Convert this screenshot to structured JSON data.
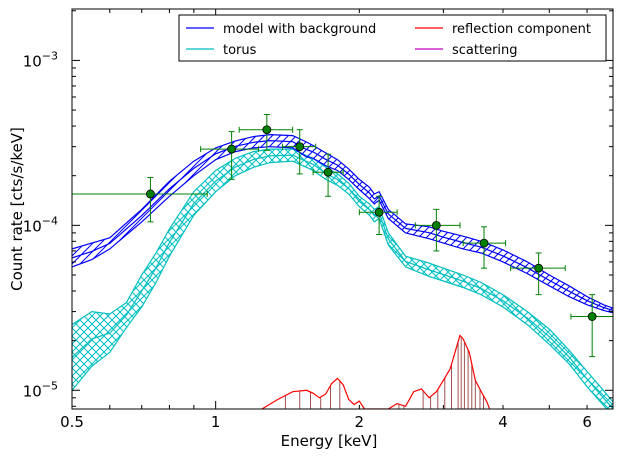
{
  "chart_data": {
    "type": "line",
    "title": "",
    "xlabel": "Energy [keV]",
    "ylabel": "Count rate [cts/s/keV]",
    "x_scale": "log",
    "y_scale": "log",
    "xlim": [
      0.5,
      6.8
    ],
    "ylim": [
      7.7e-06,
      0.00205
    ],
    "grid": false,
    "legend_position": "top-right",
    "x_tick_labels": [
      {
        "value": 0.5,
        "label": "0.5"
      },
      {
        "value": 1,
        "label": "1"
      },
      {
        "value": 2,
        "label": "2"
      },
      {
        "value": 4,
        "label": "4"
      },
      {
        "value": 6,
        "label": "6"
      }
    ],
    "y_tick_labels": [
      {
        "value": 1e-05,
        "base": "10",
        "exp": "−5"
      },
      {
        "value": 0.0001,
        "base": "10",
        "exp": "−4"
      },
      {
        "value": 0.001,
        "base": "10",
        "exp": "−3"
      }
    ],
    "legend": [
      {
        "label": "model with background",
        "color": "#0000ff"
      },
      {
        "label": "torus",
        "color": "#00bfbf"
      },
      {
        "label": "reflection component",
        "color": "#ff0000"
      },
      {
        "label": "scattering",
        "color": "#bf00bf"
      }
    ],
    "series": [
      {
        "name": "model with background",
        "color": "#0000ff",
        "hatch": "////",
        "x": [
          0.5,
          0.55,
          0.6,
          0.7,
          0.8,
          0.9,
          1.0,
          1.1,
          1.2,
          1.3,
          1.45,
          1.55,
          1.6,
          1.7,
          1.8,
          1.9,
          2.0,
          2.1,
          2.15,
          2.2,
          2.3,
          2.5,
          2.8,
          3.0,
          3.3,
          3.6,
          4.0,
          4.5,
          5.0,
          5.5,
          6.0,
          6.5,
          6.8
        ],
        "lower": [
          5.6e-05,
          6.2e-05,
          7.2e-05,
          0.000105,
          0.00015,
          0.0002,
          0.00025,
          0.00028,
          0.000295,
          0.0003,
          0.000295,
          0.00026,
          0.000255,
          0.00023,
          0.000215,
          0.00019,
          0.000165,
          0.000145,
          0.000135,
          0.000142,
          0.00011,
          9e-05,
          8.3e-05,
          7.8e-05,
          7.2e-05,
          6.8e-05,
          6e-05,
          5.1e-05,
          4.3e-05,
          3.7e-05,
          3.3e-05,
          3.05e-05,
          2.95e-05
        ],
        "upper": [
          7.2e-05,
          7.8e-05,
          8.4e-05,
          0.000125,
          0.000185,
          0.000245,
          0.000295,
          0.000325,
          0.000345,
          0.000355,
          0.00035,
          0.00032,
          0.000305,
          0.000275,
          0.00025,
          0.00022,
          0.00019,
          0.00017,
          0.000155,
          0.00016,
          0.000125,
          0.000102,
          9.8e-05,
          9.2e-05,
          8.6e-05,
          8e-05,
          7.1e-05,
          6e-05,
          5e-05,
          4.3e-05,
          3.7e-05,
          3.3e-05,
          3.15e-05
        ]
      },
      {
        "name": "torus",
        "color": "#00bfbf",
        "hatch": "xxx",
        "x": [
          0.5,
          0.55,
          0.6,
          0.65,
          0.7,
          0.75,
          0.8,
          0.9,
          1.0,
          1.1,
          1.2,
          1.3,
          1.45,
          1.55,
          1.6,
          1.7,
          1.8,
          1.9,
          2.0,
          2.1,
          2.15,
          2.2,
          2.3,
          2.5,
          2.8,
          3.0,
          3.3,
          3.6,
          4.0,
          4.5,
          5.0,
          5.5,
          6.0,
          6.4,
          6.8
        ],
        "lower": [
          1e-05,
          1.4e-05,
          1.7e-05,
          2.4e-05,
          3.2e-05,
          4.5e-05,
          6.5e-05,
          0.000115,
          0.00016,
          0.0002,
          0.000225,
          0.00024,
          0.000245,
          0.000225,
          0.000215,
          0.00019,
          0.000175,
          0.000155,
          0.00013,
          0.000115,
          0.000105,
          0.00011,
          7.6e-05,
          5.6e-05,
          4.9e-05,
          4.6e-05,
          4.2e-05,
          3.8e-05,
          3.2e-05,
          2.5e-05,
          1.9e-05,
          1.45e-05,
          1.05e-05,
          8.5e-06,
          7e-06
        ],
        "upper": [
          2.5e-05,
          3e-05,
          2.9e-05,
          3.4e-05,
          5e-05,
          6.8e-05,
          9.5e-05,
          0.00016,
          0.000215,
          0.000255,
          0.00028,
          0.00029,
          0.00029,
          0.000265,
          0.000255,
          0.000225,
          0.000205,
          0.00018,
          0.00015,
          0.000135,
          0.000125,
          0.00013,
          9e-05,
          6.5e-05,
          5.9e-05,
          5.5e-05,
          5e-05,
          4.5e-05,
          3.8e-05,
          3e-05,
          2.35e-05,
          1.75e-05,
          1.3e-05,
          1.05e-05,
          8.5e-06
        ]
      },
      {
        "name": "reflection component",
        "color": "#ff0000",
        "x": [
          1.25,
          1.35,
          1.45,
          1.55,
          1.6,
          1.65,
          1.7,
          1.75,
          1.8,
          1.85,
          1.9,
          1.95,
          2.0,
          2.05,
          2.3,
          2.4,
          2.5,
          2.6,
          2.7,
          2.8,
          2.9,
          3.0,
          3.1,
          3.2,
          3.25,
          3.3,
          3.4,
          3.5,
          3.6,
          3.7,
          3.75
        ],
        "y": [
          7.7e-06,
          8.8e-06,
          9.8e-06,
          1e-05,
          9.6e-06,
          9e-06,
          9.5e-06,
          1.1e-05,
          1.18e-05,
          1.08e-05,
          8.8e-06,
          8.2e-06,
          8.6e-06,
          7.7e-06,
          7.7e-06,
          8.3e-06,
          8e-06,
          9.8e-06,
          1.02e-05,
          9e-06,
          9.8e-06,
          1.15e-05,
          1.35e-05,
          1.85e-05,
          2.15e-05,
          2.05e-05,
          1.7e-05,
          1.15e-05,
          9.8e-06,
          8.5e-06,
          7.7e-06
        ],
        "stems_x": [
          1.4,
          1.5,
          1.58,
          1.66,
          1.74,
          1.82,
          2.42,
          2.48,
          2.72,
          2.82,
          2.92,
          3.02,
          3.12,
          3.22,
          3.27,
          3.32,
          3.38,
          3.44,
          3.5,
          3.58,
          3.64
        ]
      }
    ],
    "data_points": {
      "name": "data",
      "color": "#008000",
      "x": [
        0.73,
        1.08,
        1.28,
        1.5,
        1.72,
        2.2,
        2.9,
        3.65,
        4.75,
        6.15
      ],
      "xerr_low": [
        0.5,
        0.93,
        1.12,
        1.38,
        1.6,
        2.0,
        2.62,
        3.3,
        4.15,
        5.55
      ],
      "xerr_high": [
        0.96,
        1.23,
        1.45,
        1.62,
        1.85,
        2.4,
        3.25,
        4.05,
        5.4,
        6.8
      ],
      "y": [
        0.000155,
        0.00029,
        0.00038,
        0.0003,
        0.00021,
        0.00012,
        0.0001,
        7.8e-05,
        5.5e-05,
        2.8e-05
      ],
      "yerr_low": [
        0.000105,
        0.00019,
        0.000285,
        0.000205,
        0.00015,
        8.8e-05,
        7e-05,
        5.5e-05,
        3.8e-05,
        1.6e-05
      ],
      "yerr_high": [
        0.000195,
        0.00037,
        0.00047,
        0.00038,
        0.00027,
        0.00015,
        0.000125,
        9.8e-05,
        6.8e-05,
        3.8e-05
      ]
    }
  }
}
